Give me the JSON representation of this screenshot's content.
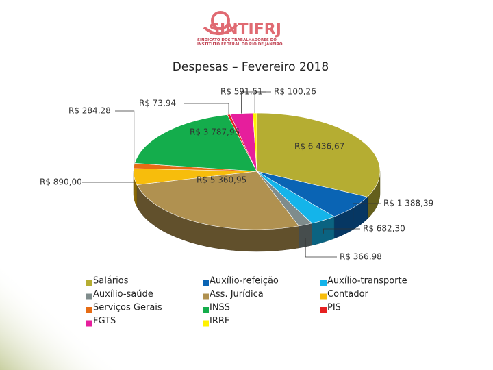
{
  "logo": {
    "name": "SINTIFRJ",
    "subtitle": "SINDICATO DOS TRABALHADORES DO INSTITUTO FEDERAL DO RIO DE JANEIRO"
  },
  "chart_data": {
    "type": "pie3d",
    "title": "Despesas – Fevereiro 2018",
    "categories": [
      "Salários",
      "Auxílio-refeição",
      "Auxílio-transporte",
      "Auxílio-saúde",
      "Ass. Jurídica",
      "Contador",
      "Serviços Gerais",
      "INSS",
      "PIS",
      "FGTS",
      "IRRF"
    ],
    "values": [
      6436.67,
      1388.39,
      682.3,
      366.98,
      5360.95,
      890.0,
      284.28,
      3787.95,
      73.94,
      591.51,
      100.26
    ],
    "value_labels": [
      "R$ 6 436,67",
      "R$ 1 388,39",
      "R$ 682,30",
      "R$ 366,98",
      "R$ 5 360,95",
      "R$ 890,00",
      "R$ 284,28",
      "R$ 3 787,95",
      "R$ 73,94",
      "R$ 591,51",
      "R$ 100,26"
    ],
    "colors": [
      "#b5ad32",
      "#0a64b4",
      "#14b4ea",
      "#7f8c8c",
      "#b09150",
      "#f7bd0c",
      "#e66c14",
      "#14ad4c",
      "#e62020",
      "#e61e9c",
      "#fff200"
    ]
  }
}
